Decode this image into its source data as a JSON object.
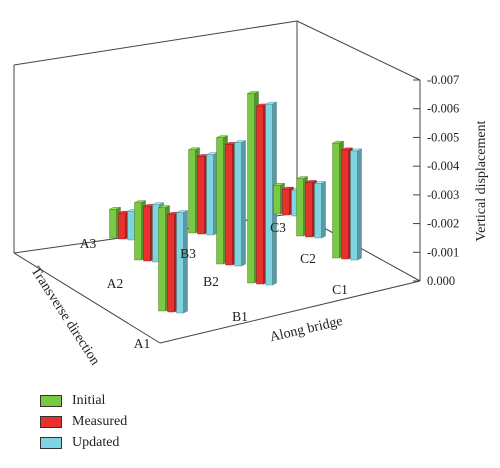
{
  "chart_data": {
    "type": "bar",
    "style": "3d-grouped-bar",
    "zlabel": "Vertical displacement",
    "xlabel": "Along bridge",
    "ylabel": "Transverse direction",
    "zlim": [
      0.0,
      -0.007
    ],
    "z_ticks": [
      "0.000",
      "-0.001",
      "-0.002",
      "-0.003",
      "-0.004",
      "-0.005",
      "-0.006",
      "-0.007"
    ],
    "grid": false,
    "legend_position": "bottom-left",
    "series": [
      {
        "name": "Initial",
        "color": "#7ac943"
      },
      {
        "name": "Measured",
        "color": "#e8312f"
      },
      {
        "name": "Updated",
        "color": "#7fd4e2"
      }
    ],
    "points": [
      {
        "label": "A3",
        "values": [
          -0.001,
          -0.0009,
          -0.001
        ]
      },
      {
        "label": "A2",
        "values": [
          -0.002,
          -0.0019,
          -0.002
        ]
      },
      {
        "label": "A1",
        "values": [
          -0.0036,
          -0.0034,
          -0.0035
        ]
      },
      {
        "label": "B3",
        "values": [
          -0.0029,
          -0.0027,
          -0.0028
        ]
      },
      {
        "label": "B2",
        "values": [
          -0.0044,
          -0.0042,
          -0.0043
        ]
      },
      {
        "label": "B1",
        "values": [
          -0.0066,
          -0.0062,
          -0.0063
        ]
      },
      {
        "label": "C3",
        "values": [
          -0.001,
          -0.0009,
          -0.0009
        ]
      },
      {
        "label": "C2",
        "values": [
          -0.002,
          -0.0019,
          -0.0019
        ]
      },
      {
        "label": "C1",
        "values": [
          -0.004,
          -0.0038,
          -0.0038
        ]
      }
    ]
  }
}
